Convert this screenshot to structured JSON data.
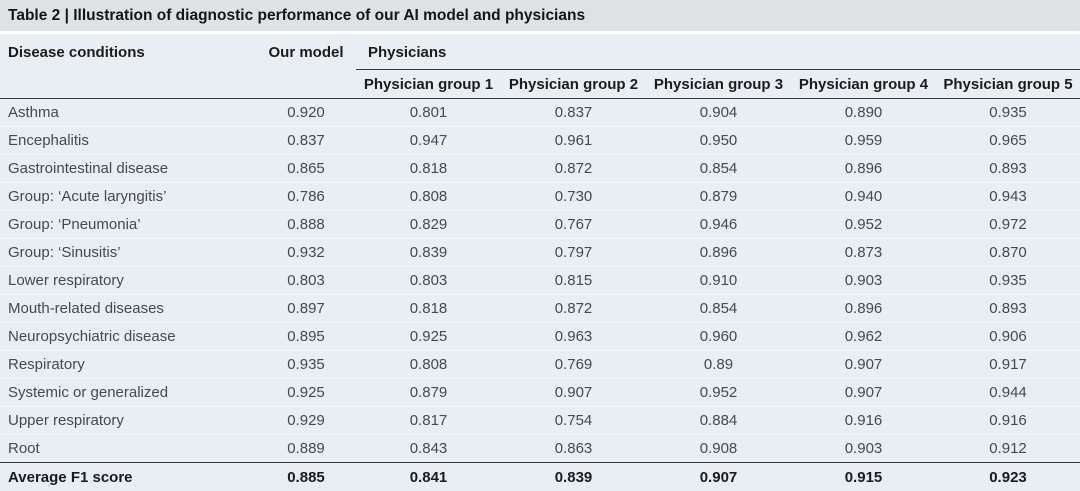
{
  "title": {
    "label": "Table 2 | ",
    "text": "Illustration of diagnostic performance of our AI model and physicians"
  },
  "table": {
    "header": {
      "disease_col": "Disease conditions",
      "model_col": "Our model",
      "physicians_group": "Physicians",
      "physician_groups": [
        "Physician group 1",
        "Physician group 2",
        "Physician group 3",
        "Physician group 4",
        "Physician group 5"
      ]
    },
    "rows": [
      {
        "condition": "Asthma",
        "values": [
          "0.920",
          "0.801",
          "0.837",
          "0.904",
          "0.890",
          "0.935"
        ]
      },
      {
        "condition": "Encephalitis",
        "values": [
          "0.837",
          "0.947",
          "0.961",
          "0.950",
          "0.959",
          "0.965"
        ]
      },
      {
        "condition": "Gastrointestinal disease",
        "values": [
          "0.865",
          "0.818",
          "0.872",
          "0.854",
          "0.896",
          "0.893"
        ]
      },
      {
        "condition": "Group: ‘Acute laryngitis’",
        "values": [
          "0.786",
          "0.808",
          "0.730",
          "0.879",
          "0.940",
          "0.943"
        ]
      },
      {
        "condition": "Group: ‘Pneumonia’",
        "values": [
          "0.888",
          "0.829",
          "0.767",
          "0.946",
          "0.952",
          "0.972"
        ]
      },
      {
        "condition": "Group: ‘Sinusitis’",
        "values": [
          "0.932",
          "0.839",
          "0.797",
          "0.896",
          "0.873",
          "0.870"
        ]
      },
      {
        "condition": "Lower respiratory",
        "values": [
          "0.803",
          "0.803",
          "0.815",
          "0.910",
          "0.903",
          "0.935"
        ]
      },
      {
        "condition": "Mouth-related diseases",
        "values": [
          "0.897",
          "0.818",
          "0.872",
          "0.854",
          "0.896",
          "0.893"
        ]
      },
      {
        "condition": "Neuropsychiatric disease",
        "values": [
          "0.895",
          "0.925",
          "0.963",
          "0.960",
          "0.962",
          "0.906"
        ]
      },
      {
        "condition": "Respiratory",
        "values": [
          "0.935",
          "0.808",
          "0.769",
          "0.89",
          "0.907",
          "0.917"
        ]
      },
      {
        "condition": "Systemic or generalized",
        "values": [
          "0.925",
          "0.879",
          "0.907",
          "0.952",
          "0.907",
          "0.944"
        ]
      },
      {
        "condition": "Upper respiratory",
        "values": [
          "0.929",
          "0.817",
          "0.754",
          "0.884",
          "0.916",
          "0.916"
        ]
      },
      {
        "condition": "Root",
        "values": [
          "0.889",
          "0.843",
          "0.863",
          "0.908",
          "0.903",
          "0.912"
        ]
      }
    ],
    "footer": {
      "condition": "Average F1 score",
      "values": [
        "0.885",
        "0.841",
        "0.839",
        "0.907",
        "0.915",
        "0.923"
      ]
    }
  },
  "colors": {
    "title_band_bg": "#dfe2e5",
    "panel_bg": "#e9eef2",
    "rule_dark": "#35383b",
    "header_text": "#1b1c1e",
    "body_text": "#46494d"
  },
  "chart_data": {
    "type": "table",
    "title": "Table 2 | Illustration of diagnostic performance of our AI model and physicians",
    "columns": [
      "Disease conditions",
      "Our model",
      "Physician group 1",
      "Physician group 2",
      "Physician group 3",
      "Physician group 4",
      "Physician group 5"
    ],
    "rows": [
      [
        "Asthma",
        0.92,
        0.801,
        0.837,
        0.904,
        0.89,
        0.935
      ],
      [
        "Encephalitis",
        0.837,
        0.947,
        0.961,
        0.95,
        0.959,
        0.965
      ],
      [
        "Gastrointestinal disease",
        0.865,
        0.818,
        0.872,
        0.854,
        0.896,
        0.893
      ],
      [
        "Group: ‘Acute laryngitis’",
        0.786,
        0.808,
        0.73,
        0.879,
        0.94,
        0.943
      ],
      [
        "Group: ‘Pneumonia’",
        0.888,
        0.829,
        0.767,
        0.946,
        0.952,
        0.972
      ],
      [
        "Group: ‘Sinusitis’",
        0.932,
        0.839,
        0.797,
        0.896,
        0.873,
        0.87
      ],
      [
        "Lower respiratory",
        0.803,
        0.803,
        0.815,
        0.91,
        0.903,
        0.935
      ],
      [
        "Mouth-related diseases",
        0.897,
        0.818,
        0.872,
        0.854,
        0.896,
        0.893
      ],
      [
        "Neuropsychiatric disease",
        0.895,
        0.925,
        0.963,
        0.96,
        0.962,
        0.906
      ],
      [
        "Respiratory",
        0.935,
        0.808,
        0.769,
        0.89,
        0.907,
        0.917
      ],
      [
        "Systemic or generalized",
        0.925,
        0.879,
        0.907,
        0.952,
        0.907,
        0.944
      ],
      [
        "Upper respiratory",
        0.929,
        0.817,
        0.754,
        0.884,
        0.916,
        0.916
      ],
      [
        "Root",
        0.889,
        0.843,
        0.863,
        0.908,
        0.903,
        0.912
      ],
      [
        "Average F1 score",
        0.885,
        0.841,
        0.839,
        0.907,
        0.915,
        0.923
      ]
    ]
  }
}
